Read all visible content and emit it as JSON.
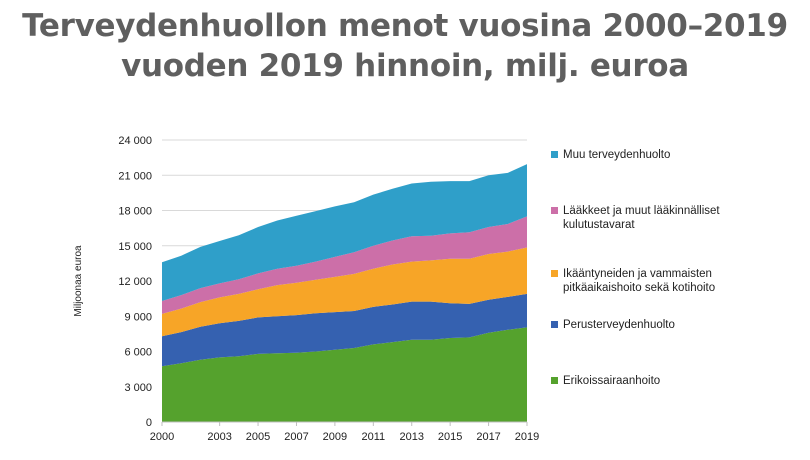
{
  "title_line1": "Terveydenhuollon menot vuosina 2000–2019",
  "title_line2": "vuoden 2019 hinnoin, milj. euroa",
  "chart_data": {
    "type": "area",
    "stacked": true,
    "ylabel": "Miljoonaa euroa",
    "xlabel": "",
    "ylim": [
      0,
      24000
    ],
    "xlim": [
      2000,
      2019
    ],
    "y_ticks": [
      0,
      3000,
      6000,
      9000,
      12000,
      15000,
      18000,
      21000,
      24000
    ],
    "y_tick_labels": [
      "0",
      "3 000",
      "6 000",
      "9 000",
      "12 000",
      "15 000",
      "18 000",
      "21 000",
      "24 000"
    ],
    "x_ticks": [
      2000,
      2003,
      2005,
      2007,
      2009,
      2011,
      2013,
      2015,
      2017,
      2019
    ],
    "grid": true,
    "legend_position": "right",
    "x": [
      2000,
      2001,
      2002,
      2003,
      2004,
      2005,
      2006,
      2007,
      2008,
      2009,
      2010,
      2011,
      2012,
      2013,
      2014,
      2015,
      2016,
      2017,
      2018,
      2019
    ],
    "series": [
      {
        "name": "Erikoissairaanhoito",
        "color": "#55a22d",
        "values": [
          4750,
          5000,
          5300,
          5500,
          5600,
          5800,
          5850,
          5900,
          6000,
          6150,
          6300,
          6600,
          6800,
          7000,
          7000,
          7150,
          7200,
          7600,
          7850,
          8050
        ]
      },
      {
        "name": "Perusterveydenhuolto",
        "color": "#3561b0",
        "values": [
          2550,
          2650,
          2800,
          2900,
          3000,
          3100,
          3150,
          3200,
          3250,
          3200,
          3150,
          3200,
          3200,
          3250,
          3250,
          2950,
          2850,
          2800,
          2800,
          2850
        ]
      },
      {
        "name": "Ikääntyneiden ja vammaisten pitkäaikaishoito sekä kotihoito",
        "color": "#f7a527",
        "values": [
          1900,
          2000,
          2100,
          2200,
          2300,
          2400,
          2650,
          2750,
          2850,
          3000,
          3150,
          3250,
          3400,
          3400,
          3500,
          3800,
          3850,
          3900,
          3850,
          3950
        ]
      },
      {
        "name": "Lääkkeet ja muut lääkinnälliset kulutustavarat",
        "color": "#cc6fa8",
        "values": [
          1100,
          1150,
          1200,
          1200,
          1250,
          1350,
          1400,
          1450,
          1550,
          1700,
          1850,
          1950,
          2050,
          2150,
          2100,
          2150,
          2250,
          2300,
          2350,
          2650
        ]
      },
      {
        "name": "Muu terveydenhuolto",
        "color": "#2f9fc9",
        "values": [
          3300,
          3350,
          3500,
          3600,
          3750,
          3950,
          4100,
          4250,
          4300,
          4300,
          4250,
          4350,
          4400,
          4500,
          4600,
          4450,
          4350,
          4400,
          4350,
          4450
        ]
      }
    ]
  }
}
